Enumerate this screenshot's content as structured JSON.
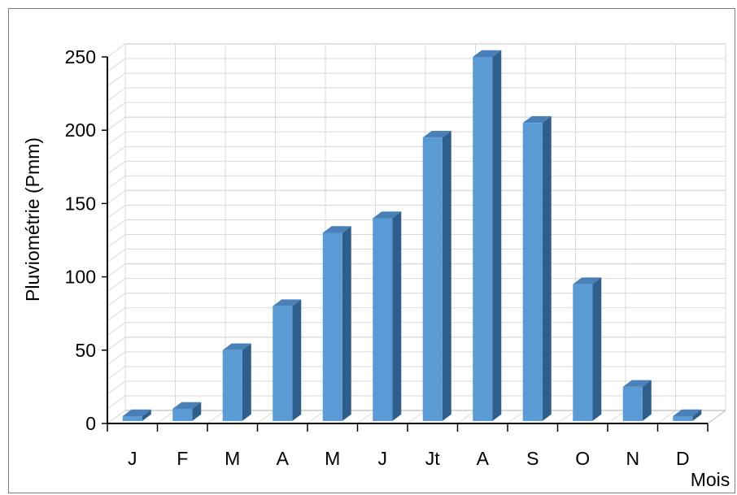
{
  "chart_data": {
    "type": "bar",
    "title": "",
    "xlabel": "Mois",
    "ylabel": "Pluviométrie (Pmm)",
    "categories": [
      "J",
      "F",
      "M",
      "A",
      "M",
      "J",
      "Jt",
      "A",
      "S",
      "O",
      "N",
      "D"
    ],
    "values": [
      5,
      10,
      50,
      80,
      130,
      140,
      195,
      250,
      205,
      95,
      25,
      5
    ],
    "ylim": [
      0,
      250
    ],
    "yticks": [
      "0",
      "50",
      "100",
      "150",
      "200",
      "250"
    ],
    "grid": true,
    "legend": "none",
    "style": "3d-columns",
    "colors": {
      "bar_front": "#5b9bd5",
      "bar_side": "#2e5f8c",
      "bar_top": "#4a80b8",
      "grid": "#d9d9d9",
      "axis": "#000000",
      "frame": "#7f7f7f"
    }
  }
}
